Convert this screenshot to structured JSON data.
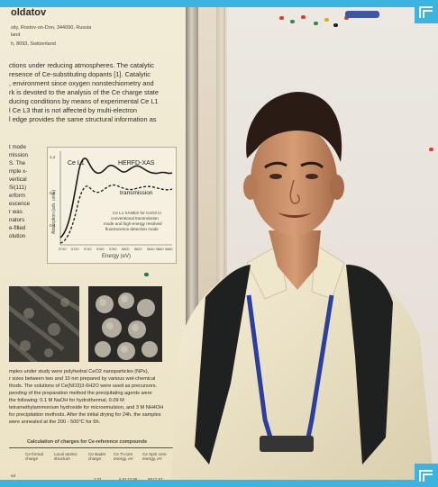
{
  "poster": {
    "title_fragment": "oldatov",
    "affiliation_lines": [
      "sity, Rostov-on-Don, 344090, Russia",
      "land",
      "h, 8093, Switzerland"
    ],
    "intro_lines": [
      "ctions under reducing atmospheres. The catalytic",
      "resence of Ce-substituting dopants [1]. Catalytic",
      ", environment since oxygen nonstechiometry and",
      "rk is devoted to the analysis of the Ce charge state",
      "ducing conditions by means of experimental Ce L1",
      "l Ce L3 that is not affected by multi-electron",
      "l edge provides the same structural information as"
    ],
    "left_col_lines": [
      "t mode",
      "mission",
      "S. The",
      "mple x-",
      "vertical",
      "Si(111)",
      "erform",
      "escence",
      "r was",
      "nators",
      "e-filled",
      "olution"
    ],
    "chart": {
      "label_ce": "Ce L1",
      "label_herfd": "HERFD-XAS",
      "label_transmission": "transmission",
      "ylabel": "Absorption (arb. units)",
      "xlabel": "Energy (eV)",
      "ytick_top": "1,2",
      "ytick_mid": "0,8",
      "ytick_low": "0,4",
      "xticks": [
        "5700",
        "5720",
        "5740",
        "5760",
        "5780",
        "5800",
        "5820",
        "5840",
        "5860",
        "5880"
      ],
      "caption_lines": [
        "Ce L1 XANES for CeO2 in",
        "conventional transmission",
        "mode and high-energy resolved",
        "fluorescence detection mode"
      ]
    },
    "method_lines": [
      "mples under study were polyhedral CeO2 nanoparticles (NPs),",
      "r sizes between two and 10 nm prepared by various wet-chemical",
      "thods. The solutions of Ce(NO3)3·6H2O were used as precursors.",
      "pending of the preparation method the precipitating agents were",
      "the following: 0.1 M NaOH for hydrothermal, 0.09 M",
      "tetramethylammonium hydroxide for microemulsion, and 3 M NH4OH",
      "for precipitation methods. After the initial drying for 24h, the samples",
      "were annealed at the 200 - 500°C for 6h."
    ],
    "table_title": "Calculation of charges for Ce-reference compounds",
    "table_headers": [
      "Ce formal charge",
      "Local atomic structure",
      "Ce Bader charge",
      "Ce Ti-core energy, eV",
      "Ce Spin core energy, eV"
    ],
    "table_row": [
      "ed",
      "",
      "",
      "2.01",
      "5,8123.86",
      "5617.67"
    ]
  },
  "colors": {
    "frame": "#3bb4e2",
    "board_bar": "#3f57a3",
    "shirt": "#f1ead2",
    "lanyard": "#2d3f9c",
    "backpack": "#1f2020"
  }
}
